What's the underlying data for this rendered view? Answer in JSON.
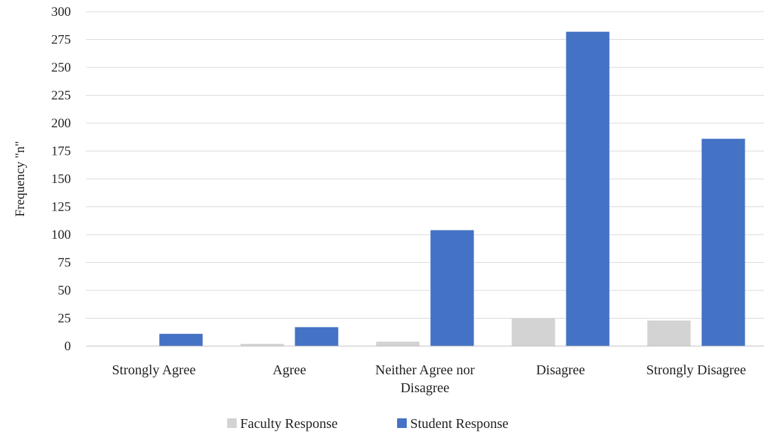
{
  "chart_data": {
    "type": "bar",
    "title": "",
    "xlabel": "",
    "ylabel": "Frequency \"n\"",
    "ylim": [
      0,
      300
    ],
    "yticks": [
      0,
      25,
      50,
      75,
      100,
      125,
      150,
      175,
      200,
      225,
      250,
      275,
      300
    ],
    "grid": true,
    "legend_position": "bottom",
    "categories": [
      [
        "Strongly Agree"
      ],
      [
        "Agree"
      ],
      [
        "Neither Agree nor",
        "Disagree"
      ],
      [
        "Disagree"
      ],
      [
        "Strongly Disagree"
      ]
    ],
    "series": [
      {
        "name": "Faculty Response",
        "color": "#d3d3d3",
        "values": [
          0,
          2,
          4,
          25,
          23
        ]
      },
      {
        "name": "Student Response",
        "color": "#4472c4",
        "values": [
          11,
          17,
          104,
          282,
          186
        ]
      }
    ]
  }
}
